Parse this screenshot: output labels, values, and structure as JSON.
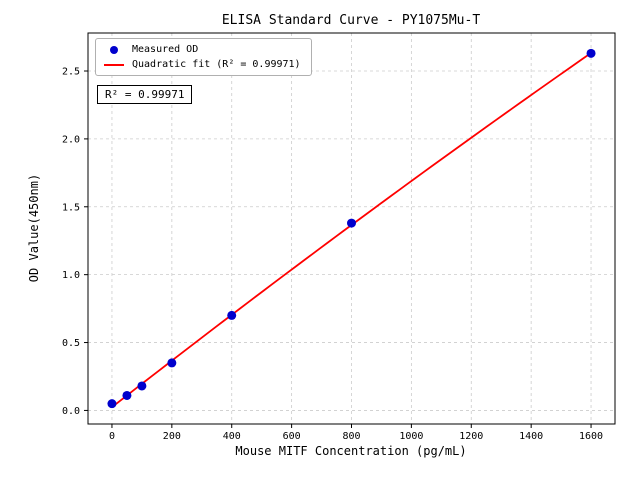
{
  "chart_data": {
    "type": "scatter",
    "title": "ELISA Standard Curve - PY1075Mu-T",
    "xlabel": "Mouse MITF Concentration (pg/mL)",
    "ylabel": "OD Value(450nm)",
    "xlim": [
      -80,
      1680
    ],
    "ylim": [
      -0.1,
      2.78
    ],
    "xticks": [
      0,
      200,
      400,
      600,
      800,
      1000,
      1200,
      1400,
      1600
    ],
    "yticks": [
      0.0,
      0.5,
      1.0,
      1.5,
      2.0,
      2.5
    ],
    "grid": true,
    "legend_position": "upper left",
    "series": [
      {
        "name": "Measured OD",
        "type": "scatter",
        "color": "#0000cd",
        "x": [
          0,
          50,
          100,
          200,
          400,
          800,
          1600
        ],
        "y": [
          0.05,
          0.11,
          0.18,
          0.35,
          0.7,
          1.38,
          2.63
        ]
      },
      {
        "name": "Quadratic fit (R² = 0.99971)",
        "type": "line",
        "fit": "quadratic",
        "color": "#ff0000"
      }
    ],
    "annotation": "R² = 0.99971"
  },
  "colors": {
    "scatter": "#0000cd",
    "fit_line": "#ff0000",
    "grid": "#cccccc",
    "axis": "#000000"
  }
}
